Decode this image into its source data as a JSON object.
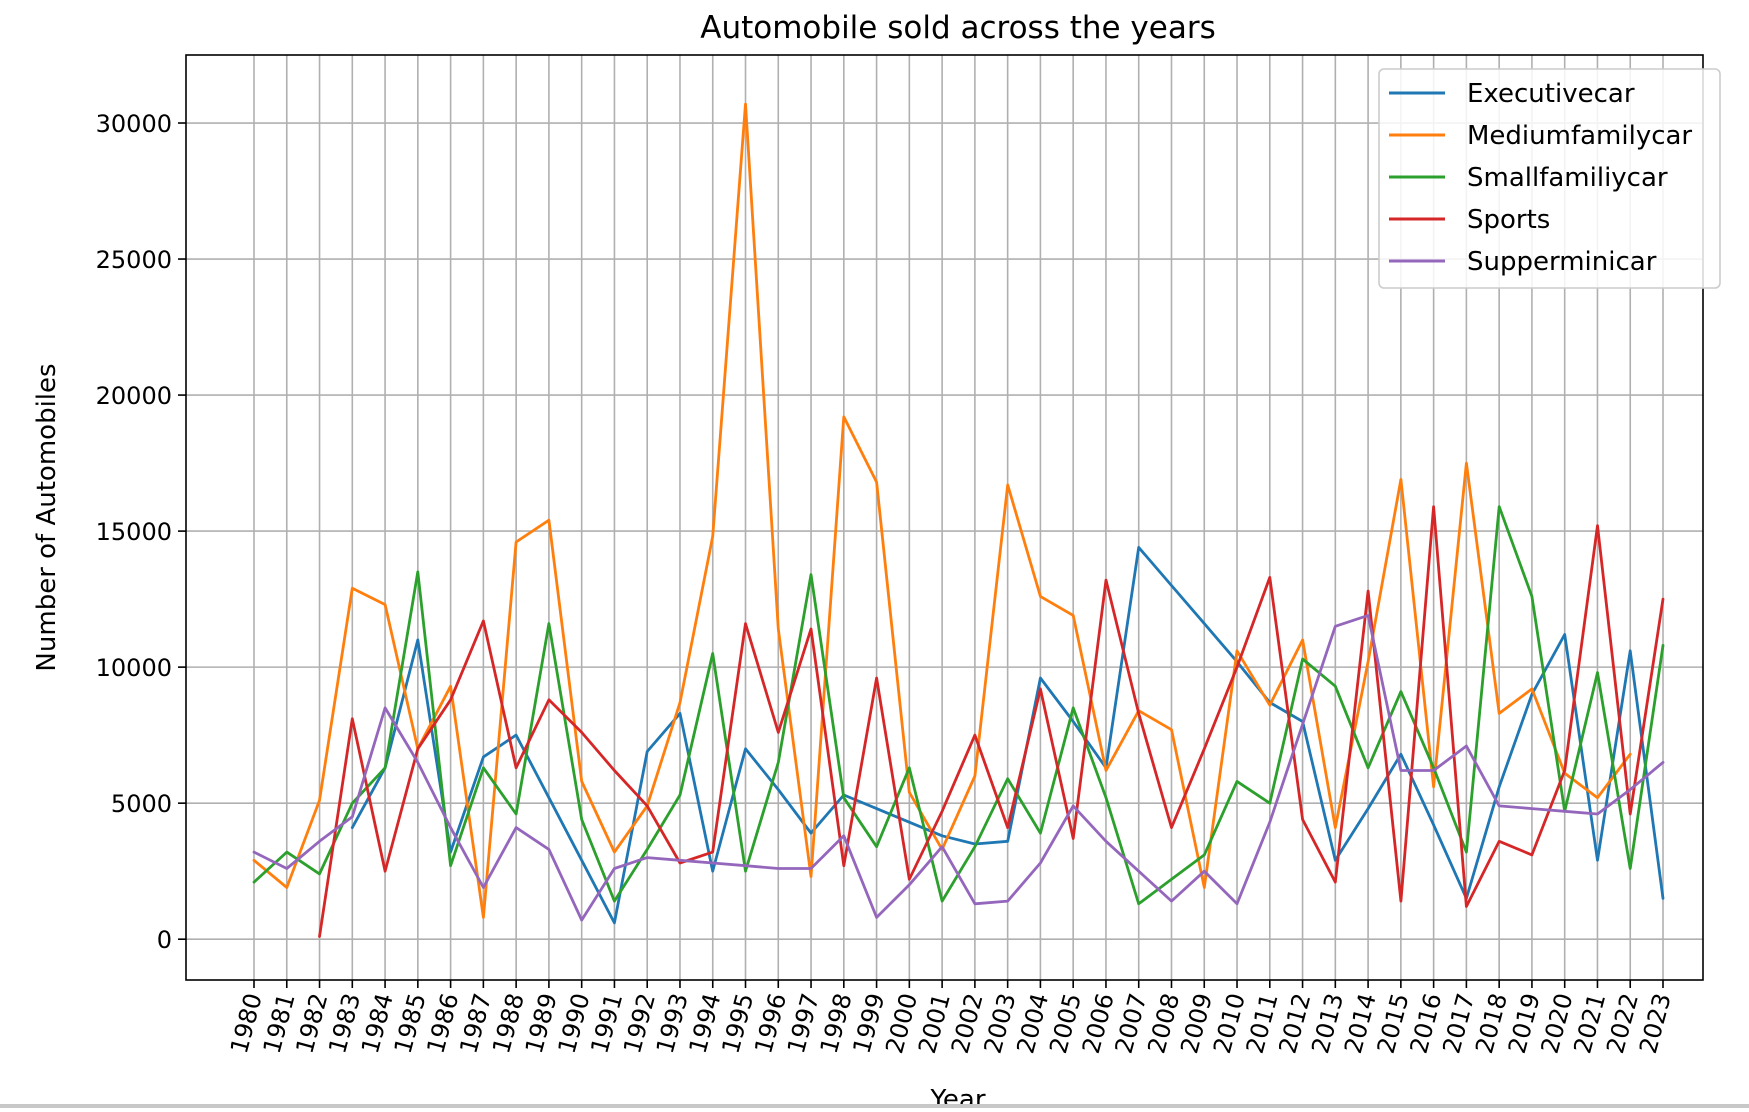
{
  "chart_data": {
    "type": "line",
    "title": "Automobile sold across the years",
    "xlabel": "Year",
    "ylabel": "Number of Automobiles",
    "categories": [
      "1980",
      "1981",
      "1982",
      "1983",
      "1984",
      "1985",
      "1986",
      "1987",
      "1988",
      "1989",
      "1990",
      "1991",
      "1992",
      "1993",
      "1994",
      "1995",
      "1996",
      "1997",
      "1998",
      "1999",
      "2000",
      "2001",
      "2002",
      "2003",
      "2004",
      "2005",
      "2006",
      "2007",
      "2008",
      "2009",
      "2010",
      "2011",
      "2012",
      "2013",
      "2014",
      "2015",
      "2016",
      "2017",
      "2018",
      "2019",
      "2020",
      "2021",
      "2022",
      "2023"
    ],
    "ylim": [
      -1500,
      32500
    ],
    "yticks": [
      0,
      5000,
      10000,
      15000,
      20000,
      25000,
      30000
    ],
    "grid": true,
    "legend_position": "upper right",
    "series": [
      {
        "name": "Executivecar",
        "color": "#1f77b4",
        "values": [
          null,
          null,
          null,
          4100,
          6300,
          11000,
          3200,
          6700,
          7500,
          5200,
          2900,
          600,
          6900,
          8300,
          2500,
          7000,
          5500,
          3900,
          5300,
          4800,
          4300,
          3800,
          3500,
          3600,
          9600,
          8000,
          6300,
          14400,
          13000,
          11600,
          10200,
          8700,
          8000,
          2900,
          4800,
          6800,
          4200,
          1500,
          5600,
          9000,
          11200,
          2900,
          10600,
          1500
        ]
      },
      {
        "name": "Mediumfamilycar",
        "color": "#ff7f0e",
        "values": [
          2900,
          1900,
          5100,
          12900,
          12300,
          7000,
          9300,
          800,
          14600,
          15400,
          5800,
          3200,
          4900,
          8700,
          14800,
          30700,
          11400,
          2300,
          19200,
          16800,
          5400,
          3300,
          6000,
          16700,
          12600,
          11900,
          6200,
          8400,
          7700,
          1900,
          10600,
          8600,
          11000,
          4100,
          10200,
          16900,
          5600,
          17500,
          8300,
          9200,
          6100,
          5200,
          6800,
          null
        ]
      },
      {
        "name": "Smallfamiliycar",
        "color": "#2ca02c",
        "values": [
          2100,
          3200,
          2400,
          5000,
          6300,
          13500,
          2700,
          6300,
          4600,
          11600,
          4400,
          1400,
          3300,
          5300,
          10500,
          2500,
          6500,
          13400,
          5200,
          3400,
          6300,
          1400,
          3400,
          5900,
          3900,
          8500,
          5200,
          1300,
          2200,
          3100,
          5800,
          5000,
          10300,
          9300,
          6300,
          9100,
          6300,
          3200,
          15900,
          12600,
          4700,
          9800,
          2600,
          10800
        ]
      },
      {
        "name": "Sports",
        "color": "#d62728",
        "values": [
          null,
          null,
          100,
          8100,
          2500,
          7000,
          8800,
          11700,
          6300,
          8800,
          7600,
          6200,
          4900,
          2800,
          3200,
          11600,
          7600,
          11400,
          2700,
          9600,
          2200,
          4700,
          7500,
          4100,
          9200,
          3700,
          13200,
          8300,
          4100,
          7000,
          10000,
          13300,
          4400,
          2100,
          12800,
          1400,
          15900,
          1200,
          3600,
          3100,
          6200,
          15200,
          4600,
          12500
        ]
      },
      {
        "name": "Supperminicar",
        "color": "#9467bd",
        "values": [
          3200,
          2600,
          3600,
          4500,
          8500,
          6500,
          4100,
          1900,
          4100,
          3300,
          700,
          2600,
          3000,
          2900,
          2800,
          2700,
          2600,
          2600,
          3800,
          800,
          2000,
          3400,
          1300,
          1400,
          2800,
          4900,
          3600,
          2500,
          1400,
          2500,
          1300,
          4300,
          7900,
          11500,
          11900,
          6200,
          6200,
          7100,
          4900,
          4800,
          4700,
          4600,
          5500,
          6500
        ]
      }
    ]
  }
}
